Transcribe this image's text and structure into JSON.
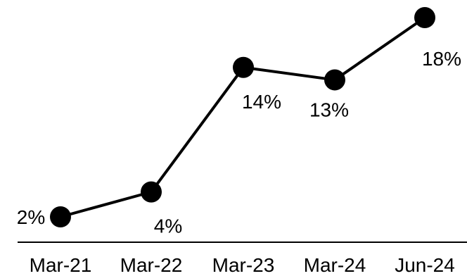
{
  "chart_data": {
    "type": "line",
    "categories": [
      "Mar-21",
      "Mar-22",
      "Mar-23",
      "Mar-24",
      "Jun-24"
    ],
    "series": [
      {
        "values": [
          2,
          4,
          14,
          13,
          18
        ],
        "labels": [
          "2%",
          "4%",
          "14%",
          "13%",
          "18%"
        ]
      }
    ],
    "title": "",
    "xlabel": "",
    "ylabel": "",
    "ylim": [
      0,
      20
    ],
    "grid": false,
    "legend": "none",
    "colors": {
      "line": "#000000",
      "marker": "#000000",
      "axis": "#000000",
      "background": "#ffffff"
    }
  }
}
